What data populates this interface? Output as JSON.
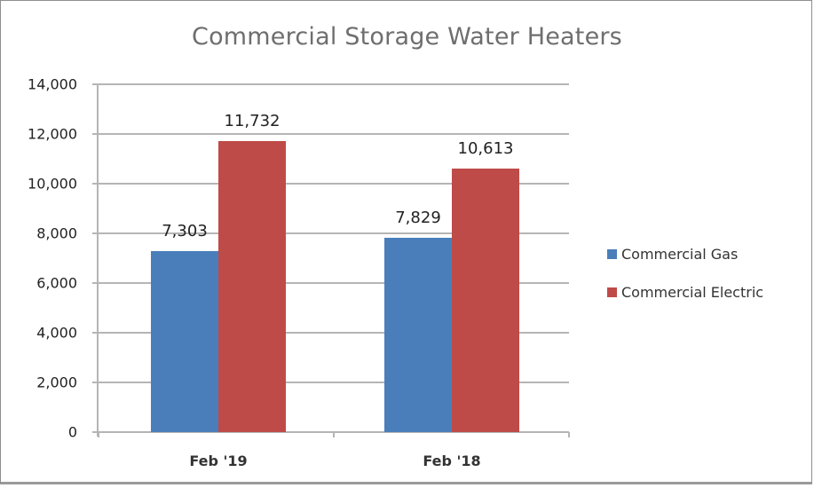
{
  "chart_data": {
    "type": "bar",
    "title": "Commercial Storage Water Heaters",
    "categories": [
      "Feb '19",
      "Feb '18"
    ],
    "series": [
      {
        "name": "Commercial Gas",
        "color": "#4a7ebb",
        "values": [
          7303,
          7829
        ],
        "labels": [
          "7,303",
          "7,829"
        ]
      },
      {
        "name": "Commercial Electric",
        "color": "#be4b48",
        "values": [
          11732,
          10613
        ],
        "labels": [
          "11,732",
          "10,613"
        ]
      }
    ],
    "xlabel": "",
    "ylabel": "",
    "ylim": [
      0,
      14000
    ],
    "yticks": [
      "0",
      "2,000",
      "4,000",
      "6,000",
      "8,000",
      "10,000",
      "12,000",
      "14,000"
    ],
    "grid": true,
    "legend_position": "right"
  }
}
